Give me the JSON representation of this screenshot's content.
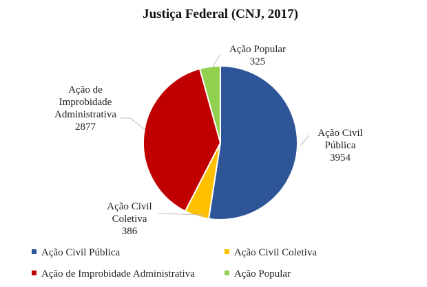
{
  "chart_data": {
    "type": "pie",
    "title": "Justiça Federal (CNJ, 2017)",
    "slices": [
      {
        "label": "Ação Civil Pública",
        "label_lines": [
          "Ação Civil",
          "Pública"
        ],
        "value": 3954,
        "value_text": "3954",
        "color": "#2e5597"
      },
      {
        "label": "Ação Civil Coletiva",
        "label_lines": [
          "Ação Civil",
          "Coletiva"
        ],
        "value": 386,
        "value_text": "386",
        "color": "#ffc000"
      },
      {
        "label": "Ação de Improbidade Administrativa",
        "label_lines": [
          "Ação de",
          "Improbidade",
          "Administrativa"
        ],
        "value": 2877,
        "value_text": "2877",
        "color": "#c00000"
      },
      {
        "label": "Ação Popular",
        "label_lines": [
          "Ação Popular"
        ],
        "value": 325,
        "value_text": "325",
        "color": "#92d050"
      }
    ],
    "legend_position": "bottom"
  }
}
